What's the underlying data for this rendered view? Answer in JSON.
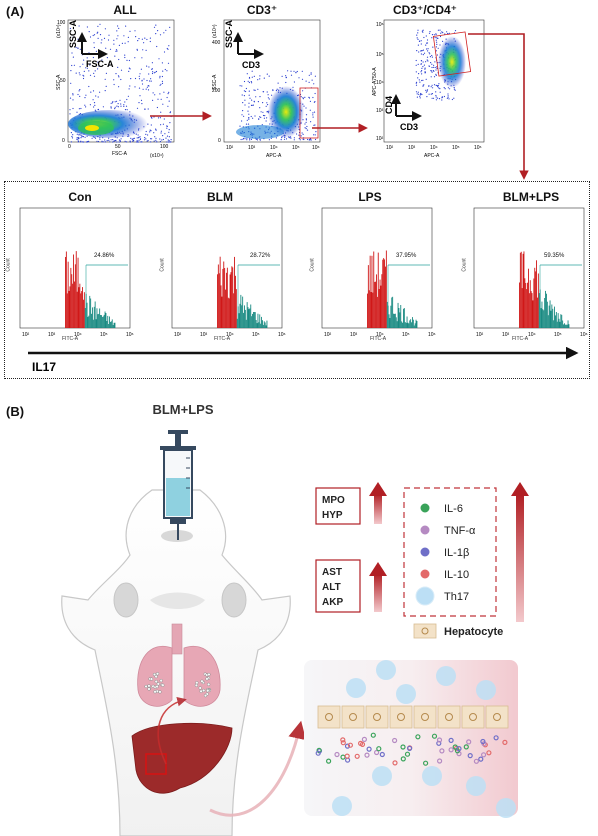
{
  "panel_a": {
    "label": "(A)",
    "scatter_plots": [
      {
        "title": "ALL",
        "y_axis": "SSC-A",
        "x_axis": "FSC-A",
        "y_scale": "(x10⁴)",
        "x_scale": "(x10⁴)",
        "arrow_y": "SSC-A",
        "arrow_x": "FSC-A",
        "x_ticks": [
          "0",
          "50",
          "100"
        ],
        "y_ticks": [
          "0",
          "50",
          "100"
        ]
      },
      {
        "title": "CD3⁺",
        "y_axis": "SSC-A",
        "x_axis": "APC-A",
        "y_scale": "(x10⁴)",
        "arrow_y": "SSC-A",
        "arrow_x": "CD3",
        "x_ticks": [
          "10²",
          "10³",
          "10⁴",
          "10⁵",
          "10⁶"
        ],
        "y_ticks": [
          "0",
          "200",
          "400"
        ]
      },
      {
        "title": "CD3⁺/CD4⁺",
        "y_axis": "APC-A750-A",
        "x_axis": "APC-A",
        "arrow_y": "CD4",
        "arrow_x": "CD3",
        "x_ticks": [
          "10²",
          "10³",
          "10⁴",
          "10⁵",
          "10⁶"
        ],
        "y_ticks": [
          "10²",
          "10³",
          "10⁴",
          "10⁵",
          "10⁶"
        ]
      }
    ],
    "histograms": [
      {
        "title": "Con",
        "percent": "24.86%",
        "x_axis": "FITC-A",
        "y_axis": "Count"
      },
      {
        "title": "BLM",
        "percent": "28.72%",
        "x_axis": "FITC-A",
        "y_axis": "Count"
      },
      {
        "title": "LPS",
        "percent": "37.95%",
        "x_axis": "FITC-A",
        "y_axis": "Count"
      },
      {
        "title": "BLM+LPS",
        "percent": "59.35%",
        "x_axis": "FITC-A",
        "y_axis": "Count"
      }
    ],
    "hist_ticks": [
      "10²",
      "10³",
      "10⁴",
      "10⁵",
      "10⁶"
    ],
    "il17_label": "IL17"
  },
  "panel_b": {
    "label": "(B)",
    "title": "BLM+LPS",
    "marker_group_1": [
      "MPO",
      "HYP"
    ],
    "marker_group_2": [
      "AST",
      "ALT",
      "AKP"
    ],
    "legend": [
      {
        "label": "IL-6",
        "color": "#3aa35a"
      },
      {
        "label": "TNF-α",
        "color": "#b58ac2"
      },
      {
        "label": "IL-1β",
        "color": "#6f6fc8"
      },
      {
        "label": "IL-10",
        "color": "#e36a6a"
      },
      {
        "label": "Th17",
        "color": "#bcdff5"
      }
    ],
    "hepatocyte_label": "Hepatocyte"
  },
  "colors": {
    "accent_red": "#b11f24",
    "teal": "#1a8a82",
    "hist_red": "#d01818"
  }
}
